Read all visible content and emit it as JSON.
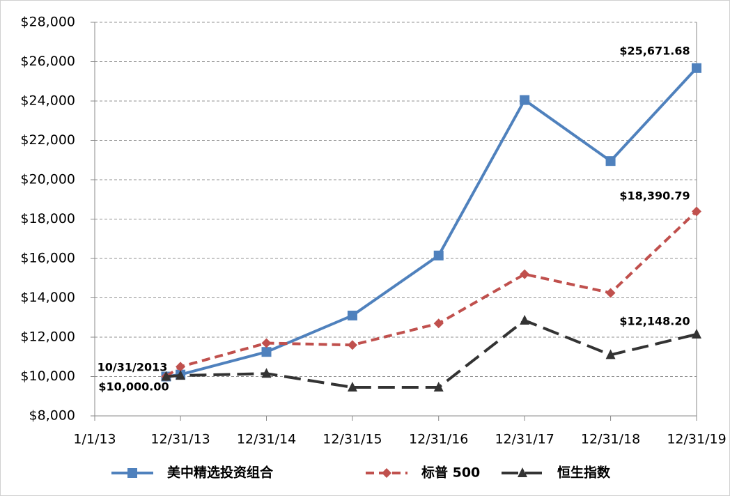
{
  "chart_data": {
    "type": "line",
    "x": [
      "2013-10-31",
      "2013-12-31",
      "2014-12-31",
      "2015-12-31",
      "2016-12-31",
      "2017-12-31",
      "2018-12-31",
      "2019-12-31"
    ],
    "series": [
      {
        "name": "美中精选投资组合",
        "color": "#4f81bd",
        "marker": "square",
        "dash": "solid",
        "values": [
          10000,
          10100,
          11250,
          13100,
          16150,
          24050,
          20950,
          25671.68
        ]
      },
      {
        "name": "标普 500",
        "color": "#c0504d",
        "marker": "diamond",
        "dash": "dashed",
        "values": [
          10000,
          10500,
          11700,
          11600,
          12700,
          15200,
          14250,
          18390.79
        ]
      },
      {
        "name": "恒生指数",
        "color": "#333333",
        "marker": "triangle",
        "dash": "long-dashed",
        "values": [
          10000,
          10050,
          10150,
          9450,
          9450,
          12850,
          11100,
          12148.2
        ]
      }
    ],
    "annotations": [
      "$25,671.68",
      "$18,390.79",
      "$12,148.20",
      "10/31/2013",
      "$10,000.00"
    ],
    "xlim": [
      "2013-01-01",
      "2019-12-31"
    ],
    "xticks": [
      {
        "value": "2013-01-01",
        "label": "1/1/13"
      },
      {
        "value": "2013-12-31",
        "label": "12/31/13"
      },
      {
        "value": "2014-12-31",
        "label": "12/31/14"
      },
      {
        "value": "2015-12-31",
        "label": "12/31/15"
      },
      {
        "value": "2016-12-31",
        "label": "12/31/16"
      },
      {
        "value": "2017-12-31",
        "label": "12/31/17"
      },
      {
        "value": "2018-12-31",
        "label": "12/31/18"
      },
      {
        "value": "2019-12-31",
        "label": "12/31/19"
      }
    ],
    "ylim": [
      8000,
      28000
    ],
    "yticks": [
      {
        "value": 8000,
        "label": "$8,000"
      },
      {
        "value": 10000,
        "label": "$10,000"
      },
      {
        "value": 12000,
        "label": "$12,000"
      },
      {
        "value": 14000,
        "label": "$14,000"
      },
      {
        "value": 16000,
        "label": "$16,000"
      },
      {
        "value": 18000,
        "label": "$18,000"
      },
      {
        "value": 20000,
        "label": "$20,000"
      },
      {
        "value": 22000,
        "label": "$22,000"
      },
      {
        "value": 24000,
        "label": "$24,000"
      },
      {
        "value": 26000,
        "label": "$26,000"
      },
      {
        "value": 28000,
        "label": "$28,000"
      }
    ],
    "grid": true,
    "legend": "bottom"
  }
}
